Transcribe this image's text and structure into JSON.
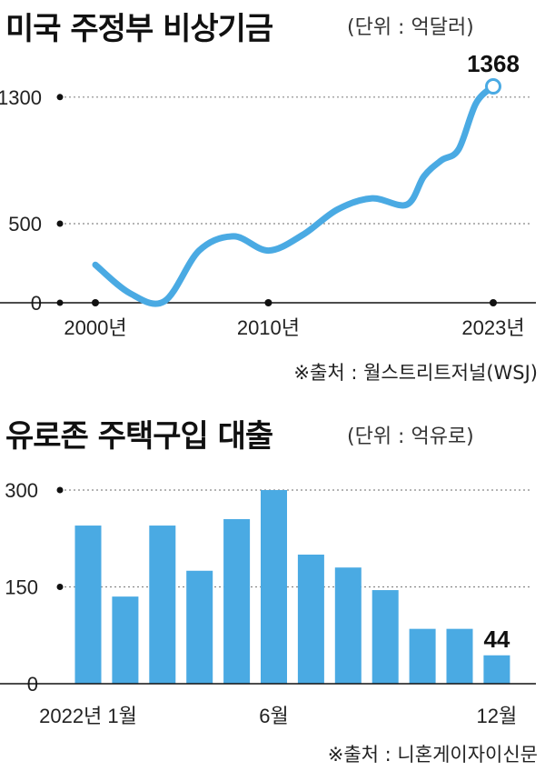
{
  "chart1": {
    "title": "미국 주정부 비상기금",
    "unit": "(단위 : 억달러)",
    "source": "※출처 : 월스트리트저널(WSJ)",
    "highlight_label": "1368",
    "chart_data": {
      "type": "line",
      "x": [
        2000,
        2002,
        2004,
        2006,
        2008,
        2010,
        2012,
        2014,
        2016,
        2018,
        2019,
        2020,
        2021,
        2022,
        2023
      ],
      "y": [
        240,
        60,
        10,
        330,
        420,
        330,
        430,
        590,
        660,
        620,
        800,
        900,
        970,
        1260,
        1368
      ],
      "ylim": [
        0,
        1500
      ],
      "yticks": [
        0,
        500,
        1300
      ],
      "xtick_labels": [
        "2000년",
        "2010년",
        "2023년"
      ],
      "line_color": "#4aaae3"
    }
  },
  "chart2": {
    "title": "유로존 주택구입 대출",
    "unit": "(단위 : 억유로)",
    "source": "※출처 : 니혼게이자이신문",
    "highlight_label": "44",
    "chart_data": {
      "type": "bar",
      "categories": [
        "1",
        "2",
        "3",
        "4",
        "5",
        "6",
        "7",
        "8",
        "9",
        "10",
        "11",
        "12"
      ],
      "values": [
        245,
        135,
        245,
        175,
        255,
        300,
        200,
        180,
        145,
        85,
        85,
        44
      ],
      "ylim": [
        0,
        300
      ],
      "yticks": [
        0,
        150,
        300
      ],
      "xtick_labels": [
        "2022년 1월",
        "6월",
        "12월"
      ],
      "bar_color": "#4aaae3"
    }
  }
}
